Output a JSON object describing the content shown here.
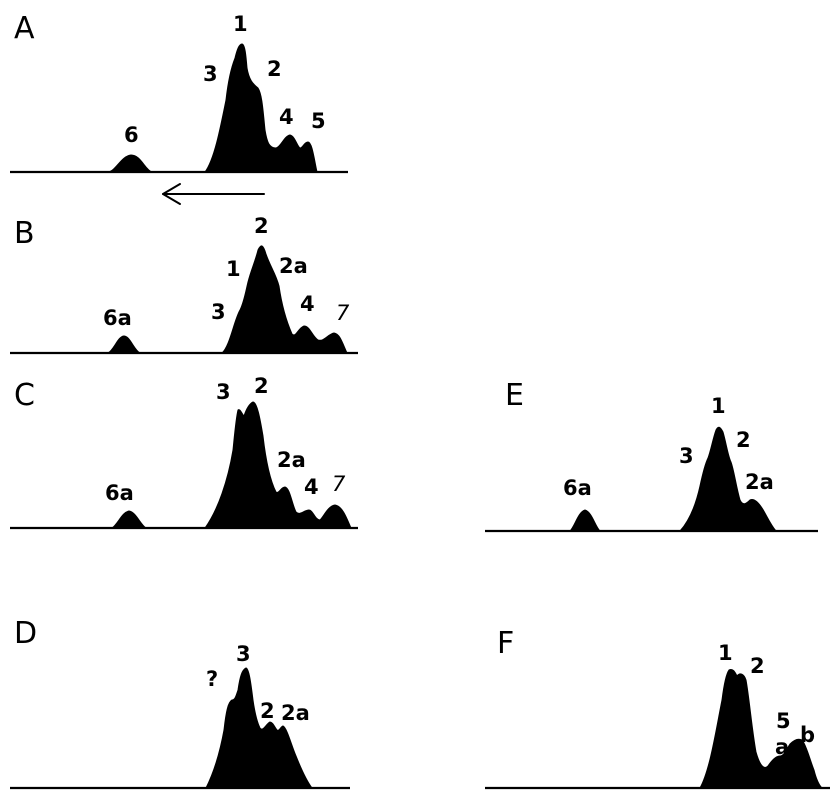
{
  "panels": [
    {
      "id": "A",
      "letter": "A",
      "labels": [
        "1",
        "2",
        "3",
        "4",
        "5",
        "6"
      ]
    },
    {
      "id": "B",
      "letter": "B",
      "labels": [
        "1",
        "2",
        "2a",
        "3",
        "4",
        "7",
        "6a"
      ]
    },
    {
      "id": "C",
      "letter": "C",
      "labels": [
        "3",
        "2",
        "2a",
        "4",
        "7",
        "6a"
      ]
    },
    {
      "id": "D",
      "letter": "D",
      "labels": [
        "?",
        "3",
        "2",
        "2a"
      ]
    },
    {
      "id": "E",
      "letter": "E",
      "labels": [
        "1",
        "2",
        "3",
        "2a",
        "6a"
      ]
    },
    {
      "id": "F",
      "letter": "F",
      "labels": [
        "1",
        "2",
        "5",
        "a",
        "b"
      ]
    }
  ],
  "direction_arrow": "leftward"
}
